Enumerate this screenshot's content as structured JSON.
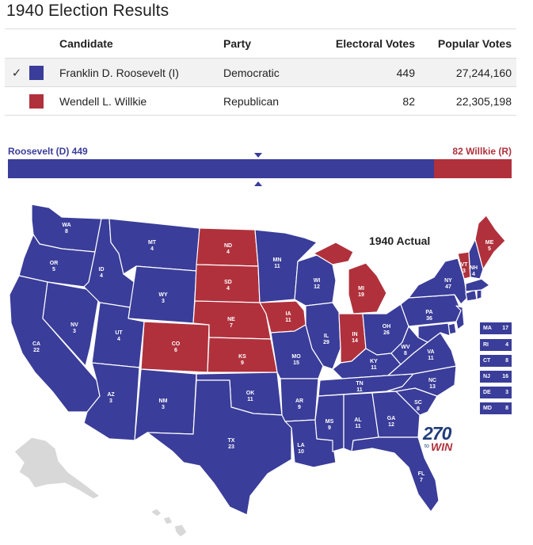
{
  "page": {
    "title": "1940 Election Results"
  },
  "table": {
    "headers": {
      "candidate": "Candidate",
      "party": "Party",
      "electoral": "Electoral Votes",
      "popular": "Popular Votes"
    },
    "rows": [
      {
        "check": "✓",
        "color": "#3a3d99",
        "candidate": "Franklin D. Roosevelt (I)",
        "party": "Democratic",
        "electoral": "449",
        "popular": "27,244,160"
      },
      {
        "check": "",
        "color": "#b0313c",
        "candidate": "Wendell L. Willkie",
        "party": "Republican",
        "electoral": "82",
        "popular": "22,305,198"
      }
    ]
  },
  "bar": {
    "left_label": "Roosevelt (D)  449",
    "right_label": "82  Willkie (R)",
    "dem_votes": 449,
    "rep_votes": 82,
    "dem_color": "#3a3d99",
    "rep_color": "#b0313c"
  },
  "map": {
    "title": "1940 Actual",
    "states": [
      {
        "abbr": "WA",
        "ev": "8"
      },
      {
        "abbr": "OR",
        "ev": "5"
      },
      {
        "abbr": "CA",
        "ev": "22"
      },
      {
        "abbr": "NV",
        "ev": "3"
      },
      {
        "abbr": "ID",
        "ev": "4"
      },
      {
        "abbr": "MT",
        "ev": "4"
      },
      {
        "abbr": "WY",
        "ev": "3"
      },
      {
        "abbr": "UT",
        "ev": "4"
      },
      {
        "abbr": "AZ",
        "ev": "3"
      },
      {
        "abbr": "CO",
        "ev": "6"
      },
      {
        "abbr": "NM",
        "ev": "3"
      },
      {
        "abbr": "ND",
        "ev": "4"
      },
      {
        "abbr": "SD",
        "ev": "4"
      },
      {
        "abbr": "NE",
        "ev": "7"
      },
      {
        "abbr": "KS",
        "ev": "9"
      },
      {
        "abbr": "OK",
        "ev": "11"
      },
      {
        "abbr": "TX",
        "ev": "23"
      },
      {
        "abbr": "MN",
        "ev": "11"
      },
      {
        "abbr": "IA",
        "ev": "11"
      },
      {
        "abbr": "MO",
        "ev": "15"
      },
      {
        "abbr": "AR",
        "ev": "9"
      },
      {
        "abbr": "LA",
        "ev": "10"
      },
      {
        "abbr": "WI",
        "ev": "12"
      },
      {
        "abbr": "IL",
        "ev": "29"
      },
      {
        "abbr": "MI",
        "ev": "19"
      },
      {
        "abbr": "IN",
        "ev": "14"
      },
      {
        "abbr": "OH",
        "ev": "26"
      },
      {
        "abbr": "KY",
        "ev": "11"
      },
      {
        "abbr": "TN",
        "ev": "11"
      },
      {
        "abbr": "MS",
        "ev": "9"
      },
      {
        "abbr": "AL",
        "ev": "11"
      },
      {
        "abbr": "GA",
        "ev": "12"
      },
      {
        "abbr": "FL",
        "ev": "7"
      },
      {
        "abbr": "SC",
        "ev": "8"
      },
      {
        "abbr": "NC",
        "ev": "13"
      },
      {
        "abbr": "VA",
        "ev": "11"
      },
      {
        "abbr": "WV",
        "ev": "8"
      },
      {
        "abbr": "PA",
        "ev": "36"
      },
      {
        "abbr": "NY",
        "ev": "47"
      },
      {
        "abbr": "VT",
        "ev": "3"
      },
      {
        "abbr": "NH",
        "ev": "4"
      },
      {
        "abbr": "ME",
        "ev": "5"
      }
    ],
    "small_states": [
      {
        "abbr": "MA",
        "ev": "17"
      },
      {
        "abbr": "RI",
        "ev": "4"
      },
      {
        "abbr": "CT",
        "ev": "8"
      },
      {
        "abbr": "NJ",
        "ev": "16"
      },
      {
        "abbr": "DE",
        "ev": "3"
      },
      {
        "abbr": "MD",
        "ev": "8"
      }
    ]
  },
  "logo": {
    "number": "270",
    "small": "to",
    "win": "WIN"
  }
}
